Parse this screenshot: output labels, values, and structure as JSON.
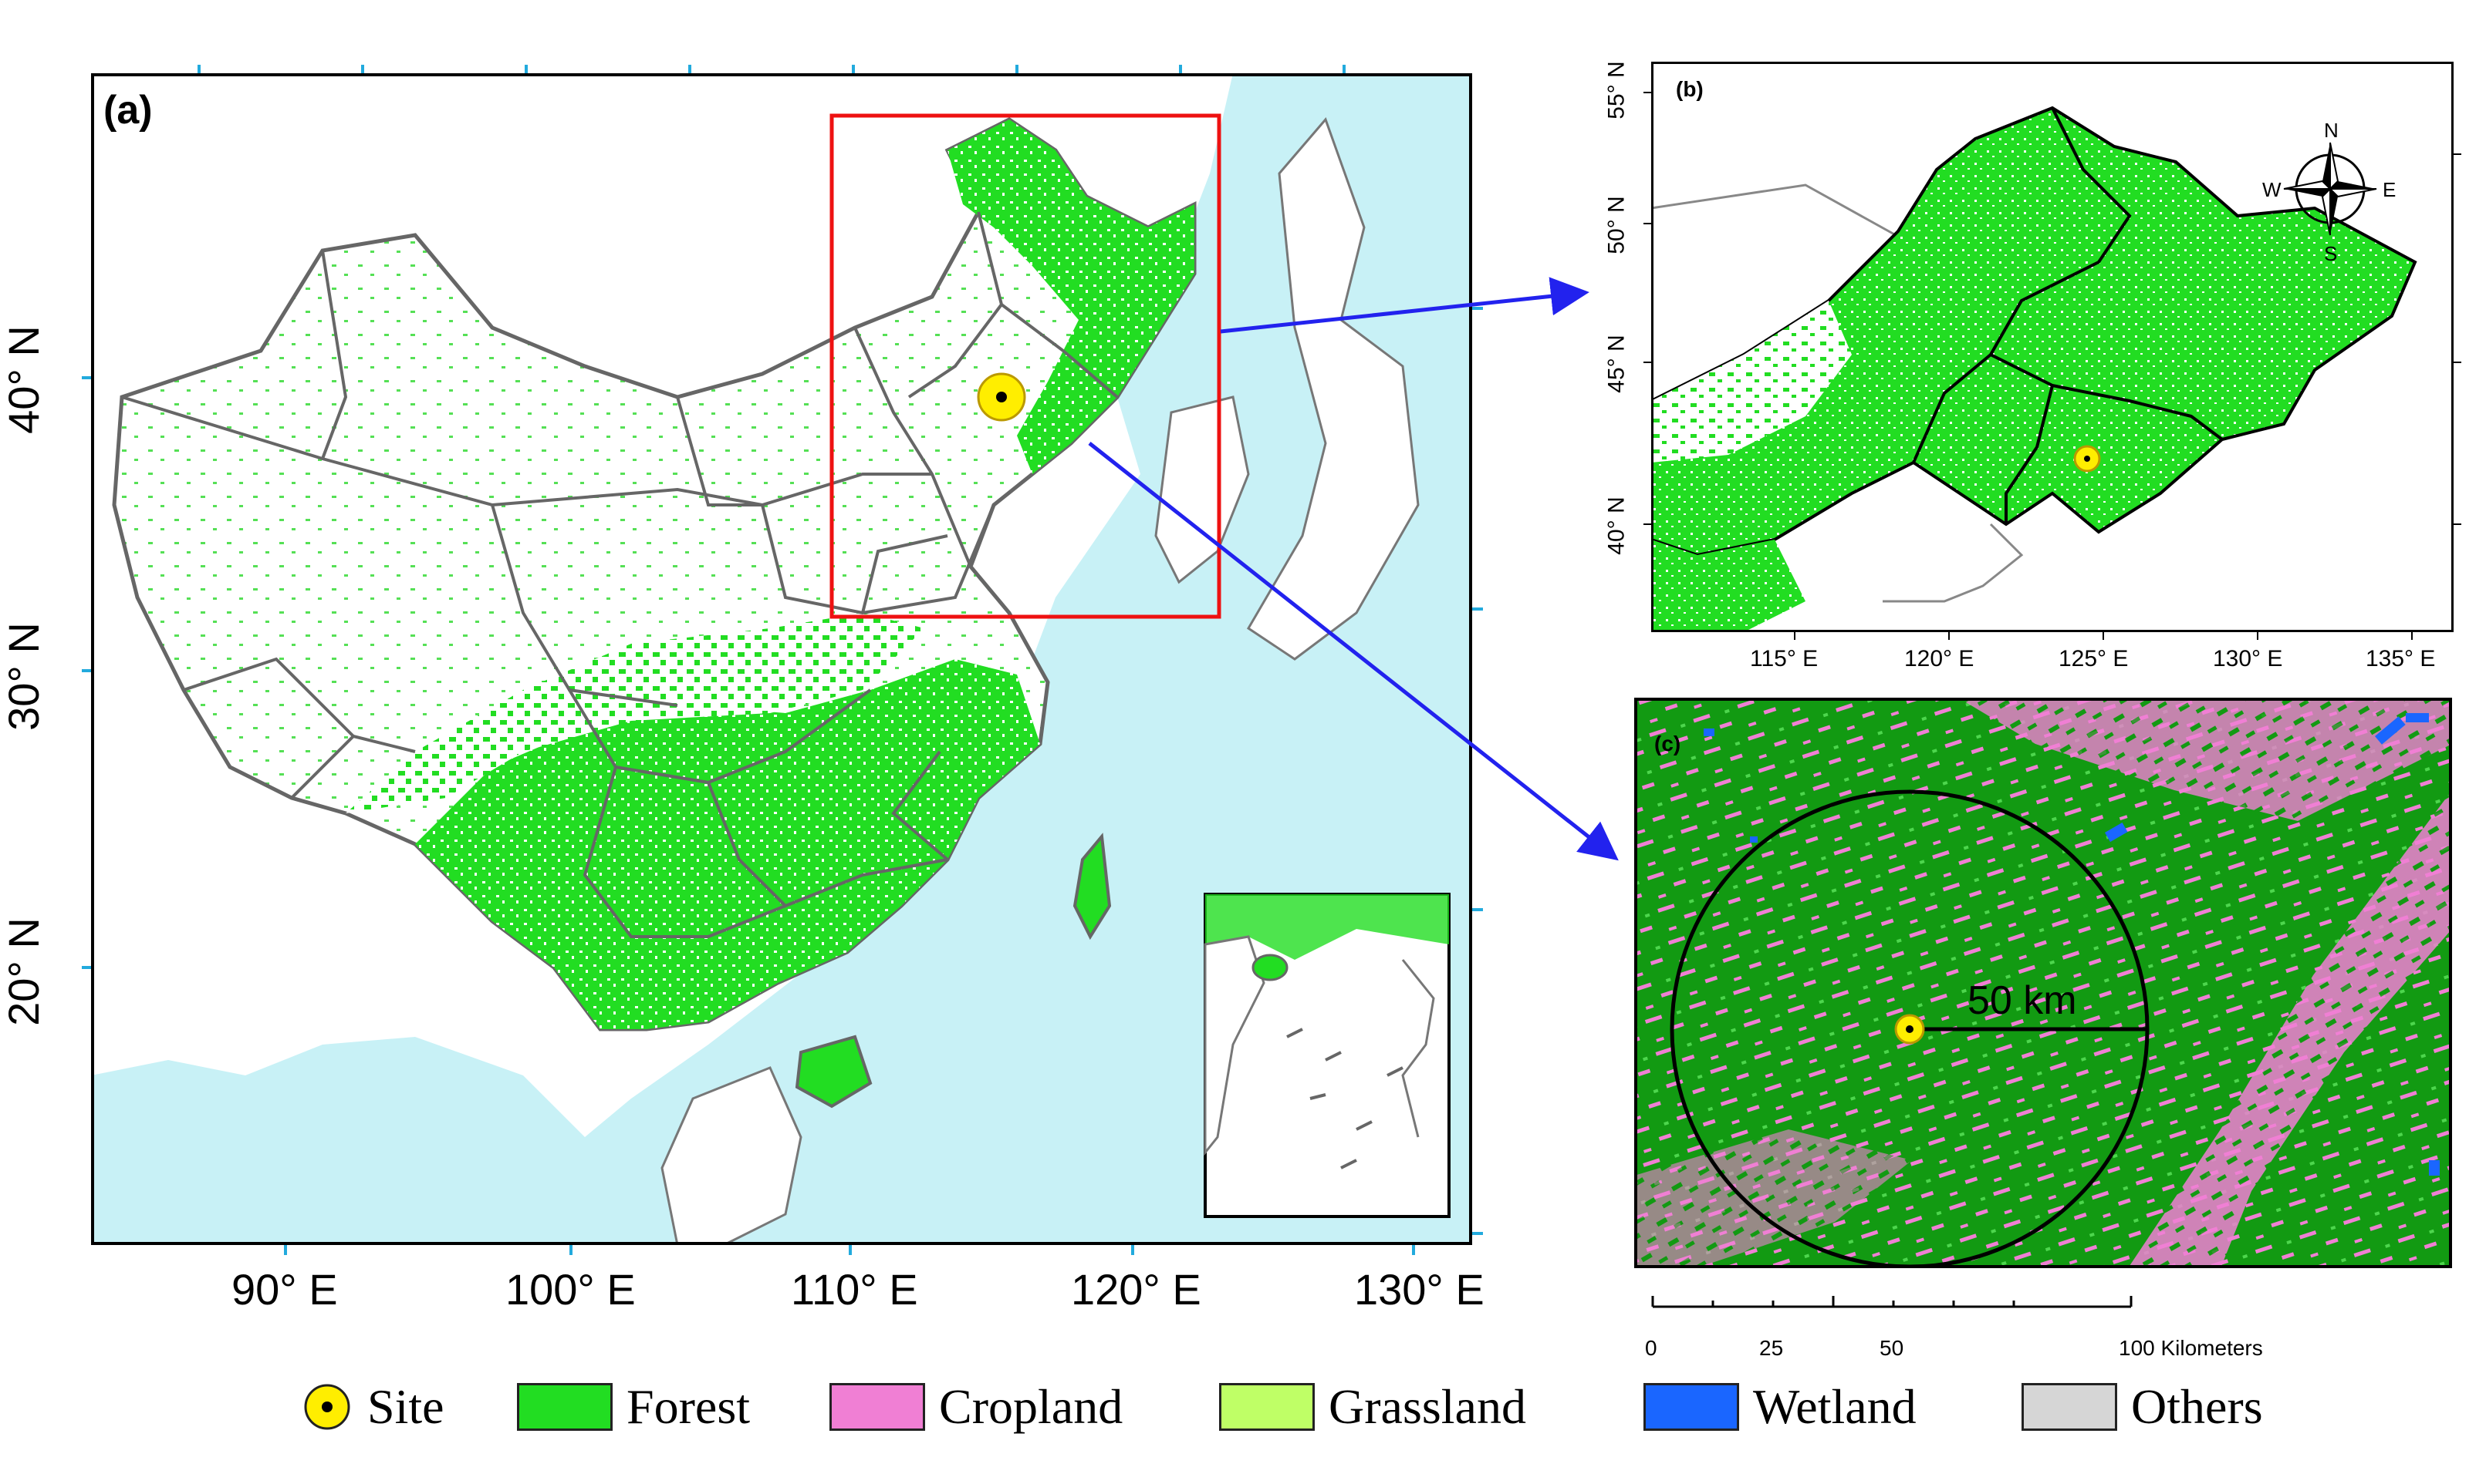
{
  "panels": {
    "a": {
      "tag": "(a)",
      "x_ticks": [
        "90° E",
        "100° E",
        "110° E",
        "120° E",
        "130° E"
      ],
      "y_ticks": [
        "40° N",
        "30° N",
        "20° N"
      ]
    },
    "b": {
      "tag": "(b)",
      "x_ticks": [
        "115° E",
        "120° E",
        "125° E",
        "130° E",
        "135° E"
      ],
      "y_ticks": [
        "55° N",
        "50° N",
        "45° N",
        "40° N"
      ],
      "compass": {
        "n": "N",
        "s": "S",
        "e": "E",
        "w": "W"
      }
    },
    "c": {
      "tag": "(c)",
      "radius_label": "50 km",
      "scalebar": [
        "0",
        "25",
        "50",
        "100 Kilometers"
      ]
    }
  },
  "legend": [
    {
      "label": "Site",
      "color": "#ffee00"
    },
    {
      "label": "Forest",
      "color": "#22dd22"
    },
    {
      "label": "Cropland",
      "color": "#f07fd4"
    },
    {
      "label": "Grassland",
      "color": "#bfff66"
    },
    {
      "label": "Wetland",
      "color": "#1a66ff"
    },
    {
      "label": "Others",
      "color": "#d6d6d6"
    }
  ],
  "colors": {
    "sea": "#c8f1f6",
    "forest": "#22dd22",
    "dark_forest": "#129a12",
    "cropland": "#f07fd4",
    "wetland": "#1a66ff",
    "boundary": "#666666",
    "arrow": "#2222ee",
    "frame_red": "#ee1111"
  }
}
